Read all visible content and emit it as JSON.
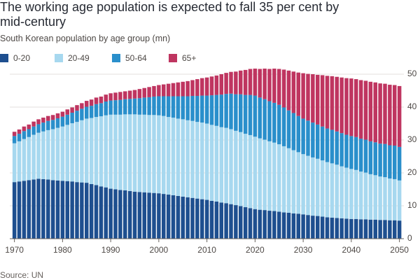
{
  "chart_data": {
    "type": "stacked-bar",
    "title": "The working age population is expected to fall 35 per cent by mid-century",
    "subtitle": "South Korean population by age group (mn)",
    "source": "Source: UN",
    "x": [
      1970,
      1971,
      1972,
      1973,
      1974,
      1975,
      1976,
      1977,
      1978,
      1979,
      1980,
      1981,
      1982,
      1983,
      1984,
      1985,
      1986,
      1987,
      1988,
      1989,
      1990,
      1991,
      1992,
      1993,
      1994,
      1995,
      1996,
      1997,
      1998,
      1999,
      2000,
      2001,
      2002,
      2003,
      2004,
      2005,
      2006,
      2007,
      2008,
      2009,
      2010,
      2011,
      2012,
      2013,
      2014,
      2015,
      2016,
      2017,
      2018,
      2019,
      2020,
      2021,
      2022,
      2023,
      2024,
      2025,
      2026,
      2027,
      2028,
      2029,
      2030,
      2031,
      2032,
      2033,
      2034,
      2035,
      2036,
      2037,
      2038,
      2039,
      2040,
      2041,
      2042,
      2043,
      2044,
      2045,
      2046,
      2047,
      2048,
      2049,
      2050
    ],
    "xlim": [
      1967,
      2053
    ],
    "xticks": [
      1970,
      1980,
      1990,
      2000,
      2010,
      2020,
      2030,
      2040,
      2050
    ],
    "ylim": [
      0,
      52
    ],
    "yticks": [
      0,
      10,
      20,
      30,
      40,
      50
    ],
    "grid": true,
    "series": [
      {
        "name": "0-20",
        "color": "#1e4f8f",
        "values": [
          17.2,
          17.4,
          17.6,
          17.8,
          18.0,
          18.2,
          18.1,
          18.0,
          17.8,
          17.7,
          17.6,
          17.5,
          17.4,
          17.2,
          17.1,
          17.0,
          16.6,
          16.3,
          15.9,
          15.6,
          15.2,
          15.0,
          14.8,
          14.7,
          14.5,
          14.3,
          14.2,
          14.1,
          14.0,
          13.9,
          13.8,
          13.6,
          13.4,
          13.2,
          13.0,
          12.8,
          12.6,
          12.4,
          12.2,
          12.0,
          11.8,
          11.5,
          11.3,
          11.0,
          10.8,
          10.5,
          10.2,
          9.9,
          9.6,
          9.3,
          9.0,
          8.8,
          8.7,
          8.5,
          8.4,
          8.2,
          8.0,
          7.9,
          7.7,
          7.6,
          7.4,
          7.2,
          7.0,
          6.9,
          6.7,
          6.5,
          6.4,
          6.3,
          6.2,
          6.1,
          6.0,
          6.0,
          5.9,
          5.9,
          5.8,
          5.8,
          5.7,
          5.7,
          5.6,
          5.6,
          5.5
        ]
      },
      {
        "name": "20-49",
        "color": "#a7d8ef",
        "values": [
          11.8,
          12.2,
          12.7,
          13.1,
          13.6,
          14.0,
          14.5,
          15.0,
          15.5,
          16.0,
          16.5,
          17.1,
          17.7,
          18.3,
          18.9,
          19.5,
          20.1,
          20.7,
          21.3,
          21.9,
          22.5,
          22.7,
          22.9,
          23.1,
          23.3,
          23.5,
          23.5,
          23.6,
          23.6,
          23.7,
          23.7,
          23.7,
          23.6,
          23.6,
          23.5,
          23.5,
          23.4,
          23.4,
          23.3,
          23.3,
          23.2,
          23.1,
          23.0,
          22.9,
          22.9,
          22.8,
          22.6,
          22.5,
          22.3,
          22.2,
          22.0,
          21.7,
          21.4,
          21.1,
          20.8,
          20.5,
          20.1,
          19.6,
          19.2,
          18.7,
          18.3,
          18.0,
          17.7,
          17.4,
          17.1,
          16.8,
          16.5,
          16.2,
          15.8,
          15.5,
          15.2,
          14.9,
          14.5,
          14.2,
          13.8,
          13.5,
          13.2,
          13.0,
          12.7,
          12.5,
          12.2
        ]
      },
      {
        "name": "50-64",
        "color": "#2a8fcb",
        "values": [
          2.2,
          2.3,
          2.4,
          2.4,
          2.5,
          2.6,
          2.7,
          2.8,
          2.8,
          2.9,
          3.0,
          3.1,
          3.2,
          3.4,
          3.5,
          3.6,
          3.7,
          3.9,
          4.0,
          4.2,
          4.3,
          4.4,
          4.5,
          4.6,
          4.7,
          4.8,
          5.0,
          5.2,
          5.4,
          5.6,
          5.8,
          6.0,
          6.3,
          6.5,
          6.8,
          7.0,
          7.3,
          7.6,
          7.9,
          8.2,
          8.5,
          9.0,
          9.4,
          9.9,
          10.3,
          10.8,
          11.1,
          11.5,
          11.8,
          12.2,
          12.5,
          12.4,
          12.3,
          12.2,
          12.1,
          12.0,
          11.8,
          11.5,
          11.3,
          11.0,
          10.8,
          10.7,
          10.6,
          10.4,
          10.3,
          10.2,
          10.2,
          10.1,
          10.1,
          10.0,
          10.0,
          10.0,
          10.0,
          10.0,
          10.0,
          10.0,
          10.0,
          10.1,
          10.1,
          10.2,
          10.2
        ]
      },
      {
        "name": "65+",
        "color": "#bf3560",
        "values": [
          1.3,
          1.3,
          1.4,
          1.4,
          1.5,
          1.5,
          1.5,
          1.5,
          1.5,
          1.5,
          1.5,
          1.6,
          1.6,
          1.7,
          1.7,
          1.8,
          1.9,
          2.0,
          2.0,
          2.1,
          2.2,
          2.3,
          2.4,
          2.4,
          2.5,
          2.6,
          2.8,
          2.9,
          3.1,
          3.2,
          3.4,
          3.6,
          3.8,
          4.0,
          4.2,
          4.4,
          4.6,
          4.8,
          5.1,
          5.3,
          5.5,
          5.7,
          5.9,
          6.2,
          6.4,
          6.6,
          6.9,
          7.2,
          7.6,
          7.9,
          8.2,
          8.7,
          9.3,
          9.8,
          10.4,
          10.9,
          11.5,
          12.1,
          12.6,
          13.2,
          13.8,
          14.2,
          14.7,
          15.1,
          15.6,
          16.0,
          16.3,
          16.6,
          16.9,
          17.2,
          17.5,
          17.6,
          17.8,
          17.9,
          18.1,
          18.2,
          18.3,
          18.3,
          18.4,
          18.4,
          18.5
        ]
      }
    ]
  }
}
